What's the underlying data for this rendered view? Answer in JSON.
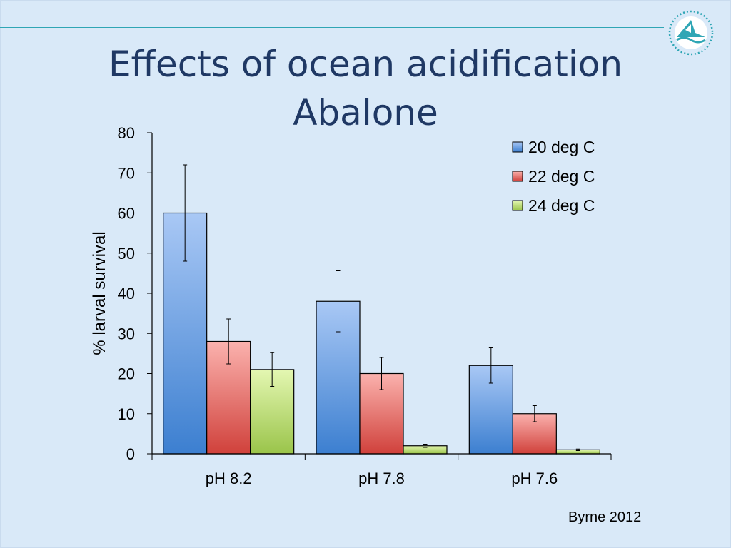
{
  "slide": {
    "title_line1": "Effects of ocean acidification",
    "title_line2": "Abalone",
    "credit": "Byrne 2012",
    "accent_color": "#2fa6b5",
    "logo_icon": "wave-boat-logo-icon"
  },
  "chart_data": {
    "type": "bar",
    "title": "",
    "xlabel": "",
    "ylabel": "% larval survival",
    "ylim": [
      0,
      80
    ],
    "yticks": [
      0,
      10,
      20,
      30,
      40,
      50,
      60,
      70,
      80
    ],
    "categories": [
      "pH 8.2",
      "pH 7.8",
      "pH 7.6"
    ],
    "legend_position": "top-right",
    "grid": false,
    "series": [
      {
        "name": "20 deg C",
        "values": [
          60,
          38,
          22
        ],
        "errors": [
          12,
          7.6,
          4.4
        ],
        "color_top": "#a9c8f5",
        "color_bottom": "#3c7fd0"
      },
      {
        "name": "22 deg C",
        "values": [
          28,
          20,
          10
        ],
        "errors": [
          5.6,
          4,
          2
        ],
        "color_top": "#fbb2ae",
        "color_bottom": "#d0413b"
      },
      {
        "name": "24 deg C",
        "values": [
          21,
          2,
          1
        ],
        "errors": [
          4.2,
          0.4,
          0.2
        ],
        "color_top": "#e4f7b2",
        "color_bottom": "#9ac44a"
      }
    ]
  }
}
